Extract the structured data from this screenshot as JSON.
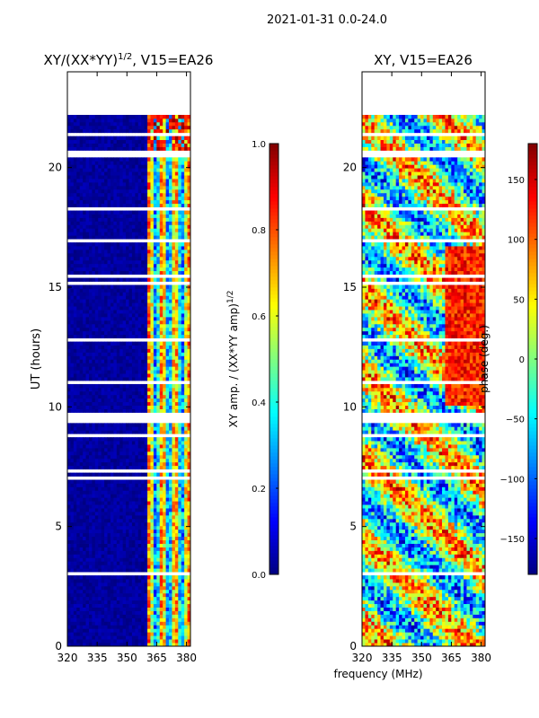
{
  "figure": {
    "suptitle": "2021-01-31 0.0-24.0",
    "xlabel": "frequency (MHz)"
  },
  "chart_data": [
    {
      "type": "heatmap",
      "title": "XY/(XX*YY)",
      "title_exponent": "1/2",
      "title_suffix": ", V15=EA26",
      "xlabel": "",
      "ylabel": "UT (hours)",
      "x_ticks": [
        "320",
        "335",
        "350",
        "365",
        "380"
      ],
      "x_tick_values": [
        320,
        335,
        350,
        365,
        380
      ],
      "xlim": [
        320,
        382
      ],
      "y_ticks": [
        "0",
        "5",
        "10",
        "15",
        "20"
      ],
      "y_tick_values": [
        0,
        5,
        10,
        15,
        20
      ],
      "ylim": [
        0,
        24
      ],
      "data_extent_hours": [
        0,
        22.2
      ],
      "colormap": "jet",
      "colorbar": {
        "label": "XY amp. / (XX*YY amp)",
        "label_exponent": "1/2",
        "range": [
          0.0,
          1.0
        ],
        "ticks": [
          "0.0",
          "0.2",
          "0.4",
          "0.6",
          "0.8",
          "1.0"
        ],
        "tick_values": [
          0.0,
          0.2,
          0.4,
          0.6,
          0.8,
          1.0
        ]
      }
    },
    {
      "type": "heatmap",
      "title": "XY, V15=EA26",
      "xlabel": "frequency (MHz)",
      "ylabel": "",
      "x_ticks": [
        "320",
        "335",
        "350",
        "365",
        "380"
      ],
      "x_tick_values": [
        320,
        335,
        350,
        365,
        380
      ],
      "xlim": [
        320,
        382
      ],
      "y_ticks": [
        "0",
        "5",
        "10",
        "15",
        "20"
      ],
      "y_tick_values": [
        0,
        5,
        10,
        15,
        20
      ],
      "ylim": [
        0,
        24
      ],
      "data_extent_hours": [
        0,
        22.2
      ],
      "colormap": "jet",
      "colorbar": {
        "label": "phase (deg.)",
        "range": [
          -180,
          180
        ],
        "ticks": [
          "−150",
          "−100",
          "−50",
          "0",
          "50",
          "100",
          "150"
        ],
        "tick_values": [
          -150,
          -100,
          -50,
          0,
          50,
          100,
          150
        ]
      }
    }
  ]
}
